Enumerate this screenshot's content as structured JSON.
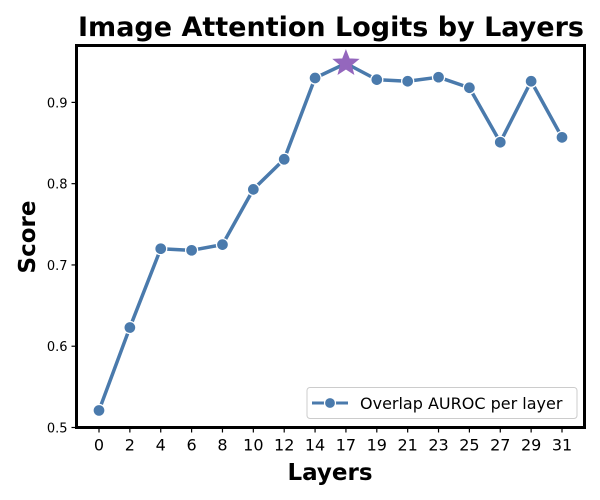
{
  "chart_data": {
    "type": "line",
    "title": "Image Attention Logits by Layers",
    "xlabel": "Layers",
    "ylabel": "Score",
    "x": [
      0,
      2,
      4,
      6,
      8,
      10,
      12,
      14,
      17,
      19,
      21,
      23,
      25,
      27,
      29,
      31
    ],
    "series": [
      {
        "name": "Overlap AUROC per layer",
        "values": [
          0.521,
          0.623,
          0.72,
          0.718,
          0.725,
          0.793,
          0.83,
          0.93,
          0.948,
          0.928,
          0.926,
          0.931,
          0.918,
          0.851,
          0.926,
          0.857
        ],
        "color": "#4a7aac"
      }
    ],
    "highlight": {
      "x": 17,
      "y": 0.948,
      "marker": "star",
      "color": "#9467bd"
    },
    "yticks": [
      "0.5",
      "0.6",
      "0.7",
      "0.8",
      "0.9"
    ],
    "xticks": [
      "0",
      "2",
      "4",
      "6",
      "8",
      "10",
      "12",
      "14",
      "17",
      "19",
      "21",
      "23",
      "25",
      "27",
      "29",
      "31"
    ],
    "ylim": [
      0.5,
      0.97
    ],
    "grid": false,
    "legend_position": "bottom-right"
  }
}
